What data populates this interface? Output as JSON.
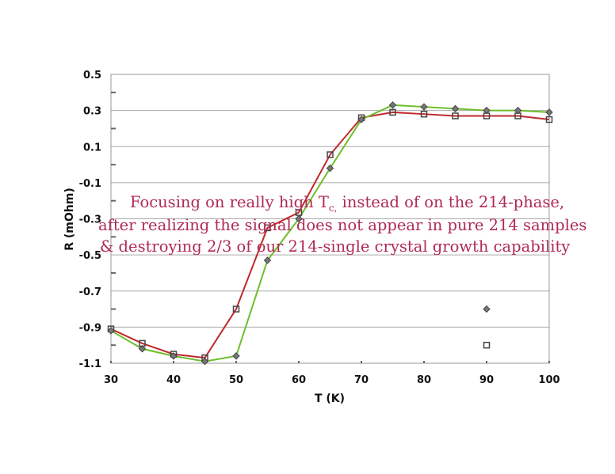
{
  "chart_data": {
    "type": "line",
    "xlabel": "T (K)",
    "ylabel": "R (mOhm)",
    "xlim": [
      30,
      100
    ],
    "ylim": [
      -1.1,
      0.5
    ],
    "xticks": [
      "30",
      "40",
      "50",
      "60",
      "70",
      "80",
      "90",
      "100"
    ],
    "yticks": [
      "0.5",
      "0.3",
      "0.1",
      "-0.1",
      "-0.3",
      "-0.5",
      "-0.7",
      "-0.9",
      "-1.1"
    ],
    "grid": "horizontal",
    "x": [
      30,
      35,
      40,
      45,
      50,
      55,
      60,
      65,
      70,
      75,
      80,
      85,
      90,
      95,
      100
    ],
    "series": [
      {
        "marker": "square",
        "color": "#c0282d",
        "values": [
          -0.91,
          -0.99,
          -1.05,
          -1.07,
          -0.8,
          -0.35,
          -0.265,
          0.055,
          0.26,
          0.29,
          0.28,
          0.27,
          0.27,
          0.27,
          0.25
        ]
      },
      {
        "marker": "diamond",
        "color": "#6cbf2a",
        "values": [
          -0.92,
          -1.02,
          -1.06,
          -1.09,
          -1.06,
          -0.53,
          -0.3,
          -0.02,
          0.25,
          0.33,
          0.32,
          0.31,
          0.3,
          0.3,
          0.29
        ]
      }
    ],
    "stray_points": [
      {
        "marker": "diamond",
        "x": 90,
        "y": -0.8
      },
      {
        "marker": "square",
        "x": 90,
        "y": -1.0
      }
    ],
    "annotation": [
      "Focusing on really high T",
      "c,",
      " instead of on the 214-phase,",
      "after realizing the signal does not appear in pure 214 samples",
      "& destroying 2/3 of our 214-single crystal growth capability"
    ]
  }
}
